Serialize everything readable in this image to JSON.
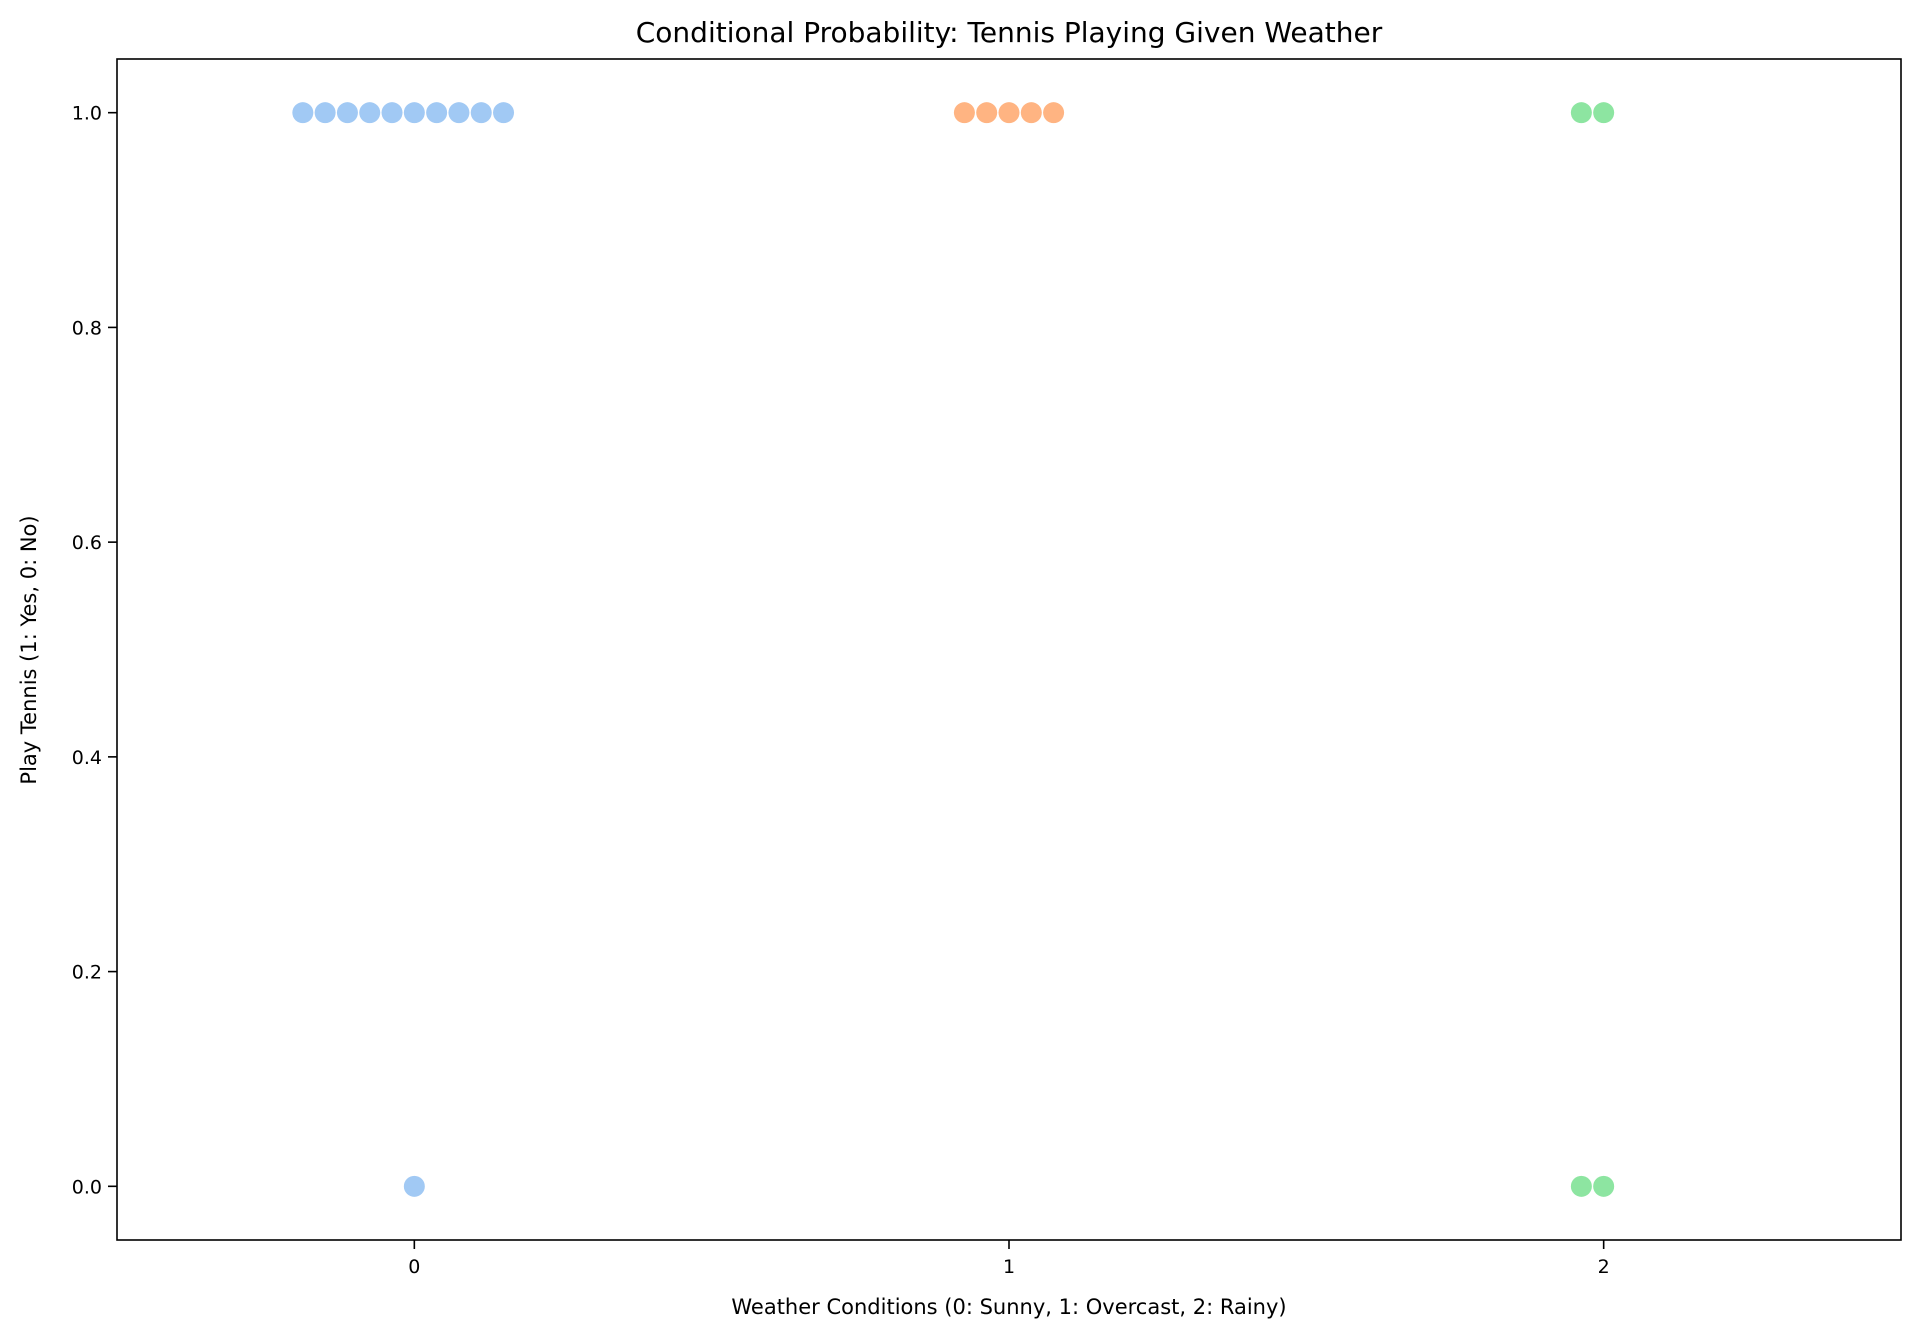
{
  "chart_data": {
    "type": "scatter",
    "title": "Conditional Probability: Tennis Playing Given Weather",
    "xlabel": "Weather Conditions (0: Sunny, 1: Overcast, 2: Rainy)",
    "ylabel": "Play Tennis (1: Yes, 0: No)",
    "xlim": [
      -0.5,
      2.5
    ],
    "ylim": [
      -0.05,
      1.05
    ],
    "xticks": [
      0,
      1,
      2
    ],
    "xtick_labels": [
      "0",
      "1",
      "2"
    ],
    "yticks": [
      0.0,
      0.2,
      0.4,
      0.6,
      0.8,
      1.0
    ],
    "ytick_labels": [
      "0.0",
      "0.2",
      "0.4",
      "0.6",
      "0.8",
      "1.0"
    ],
    "grid": false,
    "legend": "none",
    "groups": [
      {
        "category": 0,
        "color": "#a1c9f4",
        "points": [
          {
            "x": -0.1875,
            "y": 1
          },
          {
            "x": -0.15,
            "y": 1
          },
          {
            "x": -0.1125,
            "y": 1
          },
          {
            "x": -0.075,
            "y": 1
          },
          {
            "x": -0.0375,
            "y": 1
          },
          {
            "x": 0.0,
            "y": 1
          },
          {
            "x": 0.0375,
            "y": 1
          },
          {
            "x": 0.075,
            "y": 1
          },
          {
            "x": 0.1125,
            "y": 1
          },
          {
            "x": 0.15,
            "y": 1
          },
          {
            "x": 0.0,
            "y": 0
          }
        ]
      },
      {
        "category": 1,
        "color": "#ffb482",
        "points": [
          {
            "x": 0.925,
            "y": 1
          },
          {
            "x": 0.9625,
            "y": 1
          },
          {
            "x": 1.0,
            "y": 1
          },
          {
            "x": 1.0375,
            "y": 1
          },
          {
            "x": 1.075,
            "y": 1
          }
        ]
      },
      {
        "category": 2,
        "color": "#8de5a1",
        "points": [
          {
            "x": 1.9625,
            "y": 1
          },
          {
            "x": 2.0,
            "y": 1
          },
          {
            "x": 1.9625,
            "y": 0
          },
          {
            "x": 2.0,
            "y": 0
          }
        ]
      }
    ]
  }
}
